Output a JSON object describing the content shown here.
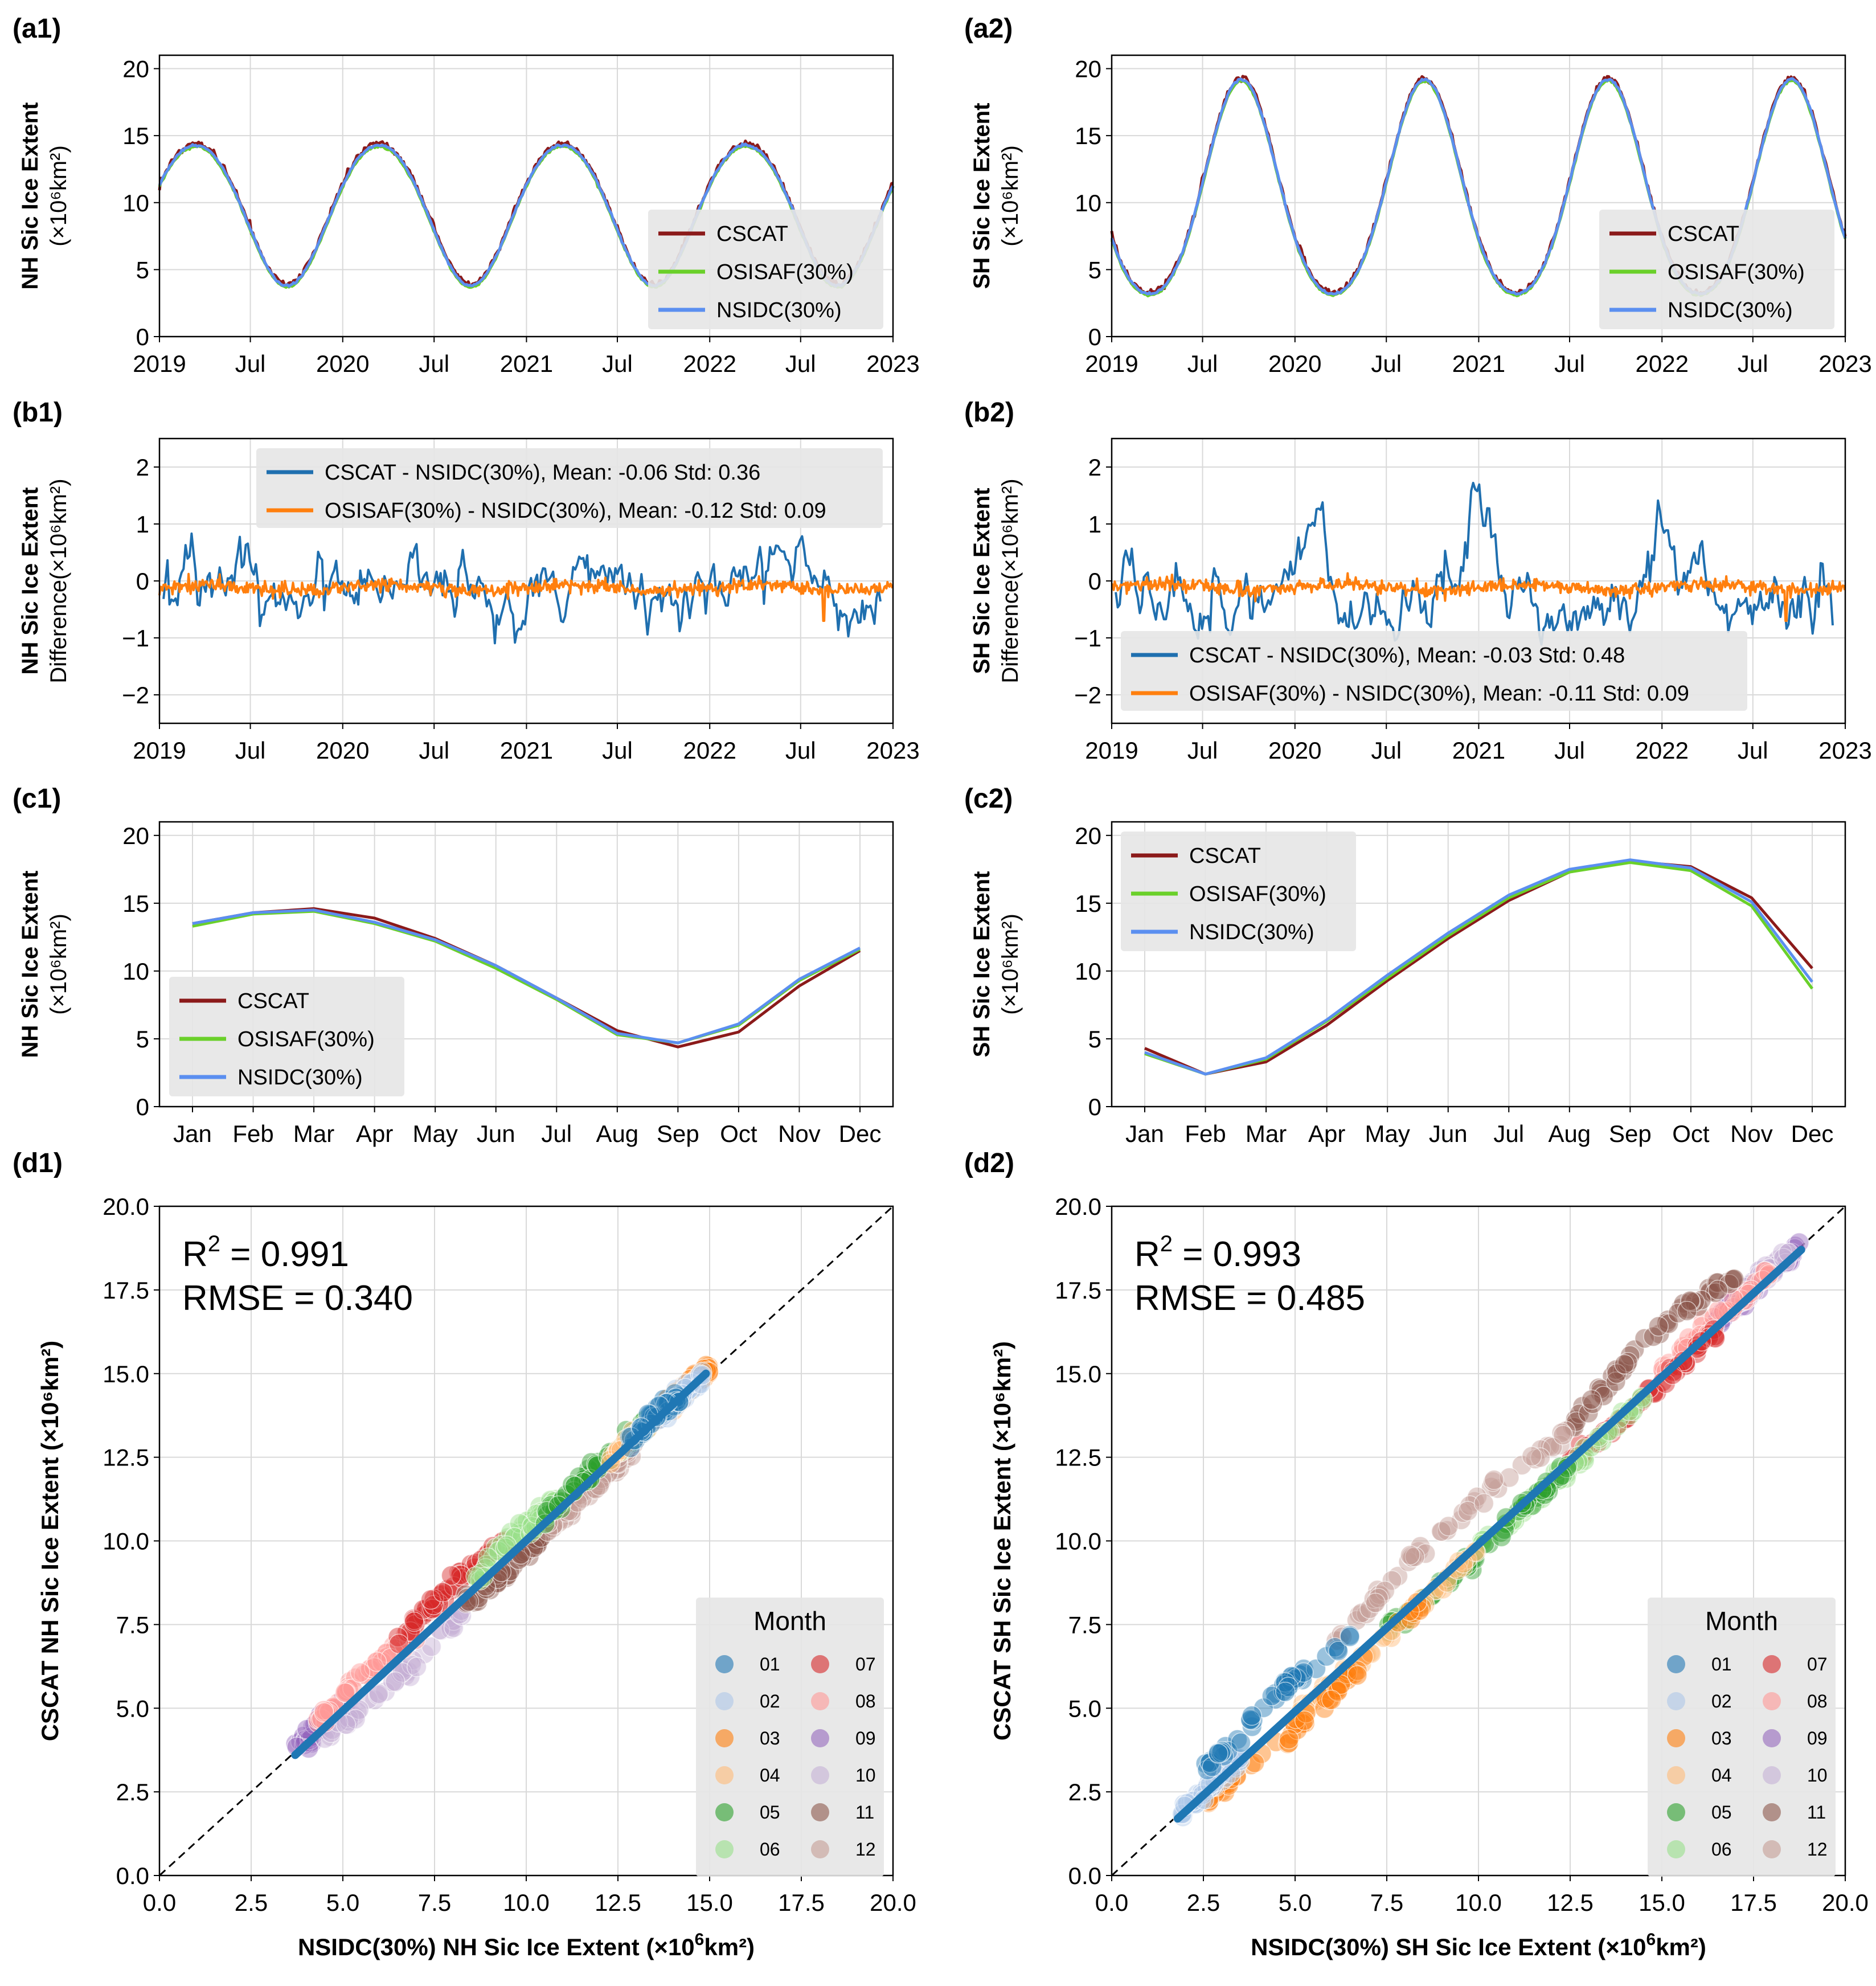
{
  "figure": {
    "panel_labels": {
      "a1": "(a1)",
      "a2": "(a2)",
      "b1": "(b1)",
      "b2": "(b2)",
      "c1": "(c1)",
      "c2": "(c2)",
      "d1": "(d1)",
      "d2": "(d2)"
    },
    "colors": {
      "cscat": "#8b1a1a",
      "osisaf": "#6ad02a",
      "nsidc": "#5b8ff0",
      "diff_cscat": "#1f6faf",
      "diff_osisaf": "#ff7f0e",
      "fit": "#1f77b4"
    }
  },
  "chart_data": [
    {
      "id": "a1",
      "type": "line",
      "ylabel_line1": "NH Sic Ice Extent",
      "ylabel_line2": "(×10⁶km²)",
      "x_ticks": [
        "2019",
        "Jul",
        "2020",
        "Jul",
        "2021",
        "Jul",
        "2022",
        "Jul",
        "2023"
      ],
      "ylim": [
        0,
        21
      ],
      "yticks": [
        0,
        5,
        10,
        15,
        20
      ],
      "hemisphere": "NH",
      "max": 14.7,
      "min": 4.0,
      "legend": [
        "CSCAT",
        "OSISAF(30%)",
        "NSIDC(30%)"
      ],
      "series": [
        {
          "name": "CSCAT"
        },
        {
          "name": "OSISAF(30%)"
        },
        {
          "name": "NSIDC(30%)"
        }
      ]
    },
    {
      "id": "a2",
      "type": "line",
      "ylabel_line1": "SH Sic Ice Extent",
      "ylabel_line2": "(×10⁶km²)",
      "x_ticks": [
        "2019",
        "Jul",
        "2020",
        "Jul",
        "2021",
        "Jul",
        "2022",
        "Jul",
        "2023"
      ],
      "ylim": [
        0,
        21
      ],
      "yticks": [
        0,
        5,
        10,
        15,
        20
      ],
      "hemisphere": "SH",
      "max": 18.5,
      "min": 2.2,
      "legend": [
        "CSCAT",
        "OSISAF(30%)",
        "NSIDC(30%)"
      ],
      "series": [
        {
          "name": "CSCAT"
        },
        {
          "name": "OSISAF(30%)"
        },
        {
          "name": "NSIDC(30%)"
        }
      ]
    },
    {
      "id": "b1",
      "type": "line",
      "ylabel_line1": "NH Sic Ice Extent",
      "ylabel_line2": "Difference(×10⁶km²)",
      "x_ticks": [
        "2019",
        "Jul",
        "2020",
        "Jul",
        "2021",
        "Jul",
        "2022",
        "Jul",
        "2023"
      ],
      "ylim": [
        -2.5,
        2.5
      ],
      "yticks": [
        -2,
        -1,
        0,
        1,
        2
      ],
      "ytick_labels": [
        "−2",
        "−1",
        "0",
        "1",
        "2"
      ],
      "series": [
        {
          "name": "CSCAT - NSIDC(30%)",
          "mean": -0.06,
          "std": 0.36,
          "label": "CSCAT - NSIDC(30%), Mean: -0.06 Std: 0.36"
        },
        {
          "name": "OSISAF(30%) - NSIDC(30%)",
          "mean": -0.12,
          "std": 0.09,
          "label": "OSISAF(30%) - NSIDC(30%), Mean: -0.12 Std: 0.09"
        }
      ]
    },
    {
      "id": "b2",
      "type": "line",
      "ylabel_line1": "SH Sic Ice Extent",
      "ylabel_line2": "Difference(×10⁶km²)",
      "x_ticks": [
        "2019",
        "Jul",
        "2020",
        "Jul",
        "2021",
        "Jul",
        "2022",
        "Jul",
        "2023"
      ],
      "ylim": [
        -2.5,
        2.5
      ],
      "yticks": [
        -2,
        -1,
        0,
        1,
        2
      ],
      "ytick_labels": [
        "−2",
        "−1",
        "0",
        "1",
        "2"
      ],
      "series": [
        {
          "name": "CSCAT - NSIDC(30%)",
          "mean": -0.03,
          "std": 0.48,
          "label": "CSCAT - NSIDC(30%), Mean: -0.03 Std: 0.48"
        },
        {
          "name": "OSISAF(30%) - NSIDC(30%)",
          "mean": -0.11,
          "std": 0.09,
          "label": "OSISAF(30%) - NSIDC(30%), Mean: -0.11 Std: 0.09"
        }
      ]
    },
    {
      "id": "c1",
      "type": "line",
      "ylabel_line1": "NH Sic Ice Extent",
      "ylabel_line2": "(×10⁶km²)",
      "categories": [
        "Jan",
        "Feb",
        "Mar",
        "Apr",
        "May",
        "Jun",
        "Jul",
        "Aug",
        "Sep",
        "Oct",
        "Nov",
        "Dec"
      ],
      "ylim": [
        0,
        21
      ],
      "yticks": [
        0,
        5,
        10,
        15,
        20
      ],
      "legend": [
        "CSCAT",
        "OSISAF(30%)",
        "NSIDC(30%)"
      ],
      "series": [
        {
          "name": "CSCAT",
          "values": [
            13.5,
            14.3,
            14.6,
            13.9,
            12.4,
            10.4,
            8.0,
            5.6,
            4.4,
            5.5,
            8.9,
            11.5
          ]
        },
        {
          "name": "OSISAF(30%)",
          "values": [
            13.3,
            14.2,
            14.4,
            13.5,
            12.2,
            10.2,
            7.9,
            5.3,
            4.7,
            6.0,
            9.3,
            11.6
          ]
        },
        {
          "name": "NSIDC(30%)",
          "values": [
            13.5,
            14.3,
            14.5,
            13.6,
            12.3,
            10.4,
            8.0,
            5.4,
            4.7,
            6.1,
            9.4,
            11.7
          ]
        }
      ]
    },
    {
      "id": "c2",
      "type": "line",
      "ylabel_line1": "SH Sic Ice Extent",
      "ylabel_line2": "(×10⁶km²)",
      "categories": [
        "Jan",
        "Feb",
        "Mar",
        "Apr",
        "May",
        "Jun",
        "Jul",
        "Aug",
        "Sep",
        "Oct",
        "Nov",
        "Dec"
      ],
      "ylim": [
        0,
        21
      ],
      "yticks": [
        0,
        5,
        10,
        15,
        20
      ],
      "legend": [
        "CSCAT",
        "OSISAF(30%)",
        "NSIDC(30%)"
      ],
      "series": [
        {
          "name": "CSCAT",
          "values": [
            4.3,
            2.4,
            3.3,
            6.0,
            9.3,
            12.4,
            15.2,
            17.3,
            18.1,
            17.7,
            15.4,
            10.2
          ]
        },
        {
          "name": "OSISAF(30%)",
          "values": [
            3.9,
            2.4,
            3.5,
            6.3,
            9.5,
            12.6,
            15.4,
            17.3,
            18.0,
            17.4,
            14.8,
            8.7
          ]
        },
        {
          "name": "NSIDC(30%)",
          "values": [
            4.0,
            2.4,
            3.6,
            6.4,
            9.7,
            12.8,
            15.6,
            17.5,
            18.2,
            17.6,
            15.1,
            9.2
          ]
        }
      ]
    },
    {
      "id": "d1",
      "type": "scatter",
      "r2_label": "R",
      "r2_value": "= 0.991",
      "rmse_label": "RMSE = 0.340",
      "xlabel_pre": "NSIDC(30%) NH Sic Ice Extent (×10",
      "xlabel_sup": "6",
      "xlabel_post": "km²)",
      "ylabel": "CSCAT NH Sic Ice Extent (×10⁶km²)",
      "xlim": [
        0,
        20
      ],
      "ylim": [
        0,
        20
      ],
      "ticks": [
        "0.0",
        "2.5",
        "5.0",
        "7.5",
        "10.0",
        "12.5",
        "15.0",
        "17.5",
        "20.0"
      ],
      "fit": {
        "x": [
          3.7,
          14.9
        ],
        "y": [
          3.6,
          15.0
        ]
      },
      "month_ranges": {
        "01": [
          12.8,
          14.2,
          0.25
        ],
        "02": [
          13.6,
          14.8,
          0.15
        ],
        "03": [
          13.5,
          15.0,
          0.25
        ],
        "04": [
          12.3,
          14.6,
          0.2
        ],
        "05": [
          10.5,
          13.3,
          0.3
        ],
        "06": [
          8.5,
          11.0,
          0.4
        ],
        "07": [
          6.5,
          9.5,
          0.7
        ],
        "08": [
          4.3,
          7.0,
          0.4
        ],
        "09": [
          3.7,
          5.2,
          0.1
        ],
        "10": [
          4.5,
          8.3,
          -0.6
        ],
        "11": [
          8.3,
          10.8,
          -0.35
        ],
        "12": [
          10.5,
          13.0,
          -0.25
        ]
      },
      "legend_title": "Month",
      "months": [
        "01",
        "02",
        "03",
        "04",
        "05",
        "06",
        "07",
        "08",
        "09",
        "10",
        "11",
        "12"
      ]
    },
    {
      "id": "d2",
      "type": "scatter",
      "r2_label": "R",
      "r2_value": "= 0.993",
      "rmse_label": "RMSE = 0.485",
      "xlabel_pre": "NSIDC(30%) SH Sic Ice Extent (×10",
      "xlabel_sup": "6",
      "xlabel_post": "km²)",
      "ylabel": "CSCAT SH Sic Ice Extent (×10⁶km²)",
      "xlim": [
        0,
        20
      ],
      "ylim": [
        0,
        20
      ],
      "ticks": [
        "0.0",
        "2.5",
        "5.0",
        "7.5",
        "10.0",
        "12.5",
        "15.0",
        "17.5",
        "20.0"
      ],
      "fit": {
        "x": [
          1.8,
          18.8
        ],
        "y": [
          1.7,
          18.7
        ]
      },
      "month_ranges": {
        "01": [
          2.5,
          6.5,
          0.9
        ],
        "02": [
          1.9,
          3.5,
          0.0
        ],
        "03": [
          2.5,
          8.5,
          -0.6
        ],
        "04": [
          5.0,
          10.0,
          -0.4
        ],
        "05": [
          7.5,
          12.5,
          -0.3
        ],
        "06": [
          10.0,
          14.5,
          -0.3
        ],
        "07": [
          12.5,
          16.5,
          -0.3
        ],
        "08": [
          15.0,
          18.0,
          0.1
        ],
        "09": [
          16.5,
          18.8,
          0.1
        ],
        "10": [
          17.0,
          18.5,
          0.2
        ],
        "11": [
          12.5,
          17.0,
          1.4
        ],
        "12": [
          6.0,
          12.5,
          1.3
        ]
      },
      "legend_title": "Month",
      "months": [
        "01",
        "02",
        "03",
        "04",
        "05",
        "06",
        "07",
        "08",
        "09",
        "10",
        "11",
        "12"
      ]
    }
  ]
}
